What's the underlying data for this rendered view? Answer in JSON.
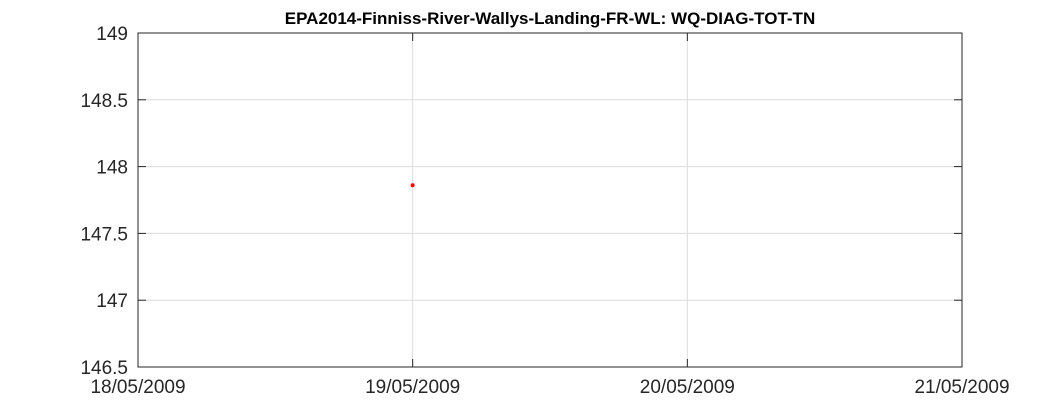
{
  "chart_data": {
    "type": "scatter",
    "title": "EPA2014-Finniss-River-Wallys-Landing-FR-WL: WQ-DIAG-TOT-TN",
    "xlabel": "",
    "ylabel": "",
    "x_ticks": [
      "18/05/2009",
      "19/05/2009",
      "20/05/2009",
      "21/05/2009"
    ],
    "xlim": [
      "18/05/2009",
      "21/05/2009"
    ],
    "y_ticks": [
      146.5,
      147,
      147.5,
      148,
      148.5,
      149
    ],
    "ylim": [
      146.5,
      149
    ],
    "grid": true,
    "series": [
      {
        "color": "#ff0000",
        "points": [
          {
            "x": "19/05/2009",
            "y": 147.86
          }
        ]
      }
    ]
  }
}
